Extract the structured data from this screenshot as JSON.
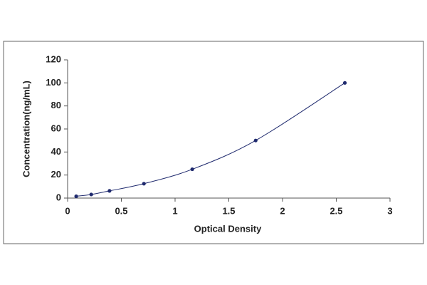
{
  "chart_data": {
    "type": "line",
    "x_label": "Optical Density",
    "y_label": "Concentration(ng/mL)",
    "x": [
      0.08,
      0.22,
      0.39,
      0.71,
      1.16,
      1.75,
      2.58
    ],
    "series": [
      {
        "color": "#1f2a6e",
        "values": [
          1.56,
          3.12,
          6.25,
          12.5,
          25,
          50,
          100
        ]
      }
    ],
    "xlim": [
      0,
      3
    ],
    "xticks": [
      0,
      0.5,
      1,
      1.5,
      2,
      2.5,
      3
    ],
    "ylim": [
      0,
      120
    ],
    "yticks": [
      0,
      20,
      40,
      60,
      80,
      100,
      120
    ],
    "grid": false,
    "markers": true,
    "smooth": true
  }
}
